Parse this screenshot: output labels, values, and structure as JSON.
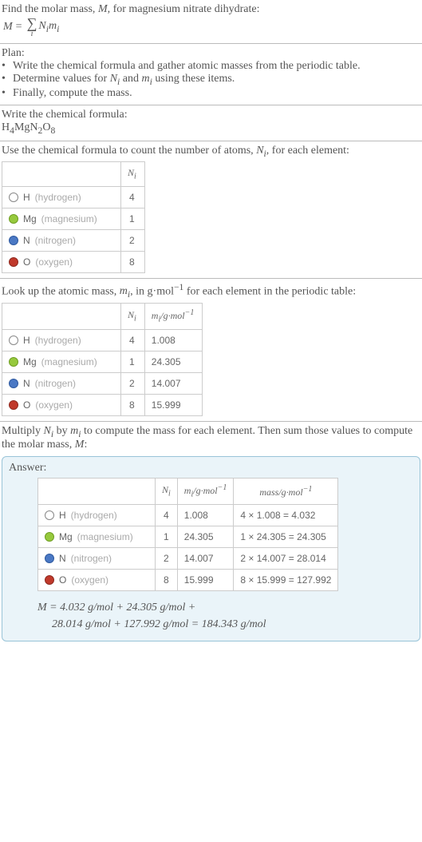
{
  "intro": {
    "line1_prefix": "Find the molar mass, ",
    "line1_var": "M",
    "line1_suffix": ", for magnesium nitrate dihydrate:",
    "eq_lhs": "M",
    "eq_eq": "=",
    "eq_sigma": "∑",
    "eq_sigma_sub": "i",
    "eq_rhs": "N_i m_i"
  },
  "plan": {
    "heading": "Plan:",
    "items": [
      "Write the chemical formula and gather atomic masses from the periodic table.",
      "Determine values for N_i and m_i using these items.",
      "Finally, compute the mass."
    ],
    "bullet": "•"
  },
  "formula_section": {
    "heading": "Write the chemical formula:",
    "formula_parts": [
      "H",
      "4",
      "Mg",
      "N",
      "2",
      "O",
      "8"
    ]
  },
  "count_section": {
    "heading_prefix": "Use the chemical formula to count the number of atoms, ",
    "heading_var": "N_i",
    "heading_suffix": ", for each element:",
    "col_ni": "N_i"
  },
  "mass_section": {
    "heading_prefix": "Look up the atomic mass, ",
    "heading_var": "m_i",
    "heading_mid": ", in g·mol",
    "heading_exp": "−1",
    "heading_suffix": " for each element in the periodic table:",
    "col_ni": "N_i",
    "col_mi_prefix": "m_i",
    "col_mi_unit": "/g·mol",
    "col_mi_exp": "−1"
  },
  "multiply_section": {
    "text_prefix": "Multiply ",
    "ni": "N_i",
    "by": " by ",
    "mi": "m_i",
    "text_suffix": " to compute the mass for each element. Then sum those values to compute the molar mass, ",
    "mvar": "M",
    "colon": ":"
  },
  "answer": {
    "label": "Answer:",
    "col_ni": "N_i",
    "col_mi_prefix": "m_i",
    "col_mi_unit": "/g·mol",
    "col_mi_exp": "−1",
    "col_mass_prefix": "mass/g·mol",
    "col_mass_exp": "−1",
    "result_line1": "M = 4.032 g/mol + 24.305 g/mol +",
    "result_line2": "28.014 g/mol + 127.992 g/mol = 184.343 g/mol"
  },
  "elements": [
    {
      "sym": "H",
      "name": "(hydrogen)",
      "dot_fill": "#ffffff",
      "dot_border": "#888888",
      "ni": "4",
      "mi": "1.008",
      "mass": "4 × 1.008 = 4.032"
    },
    {
      "sym": "Mg",
      "name": "(magnesium)",
      "dot_fill": "#96c93d",
      "dot_border": "#6f9e23",
      "ni": "1",
      "mi": "24.305",
      "mass": "1 × 24.305 = 24.305"
    },
    {
      "sym": "N",
      "name": "(nitrogen)",
      "dot_fill": "#4a78c4",
      "dot_border": "#2f5aa0",
      "ni": "2",
      "mi": "14.007",
      "mass": "2 × 14.007 = 28.014"
    },
    {
      "sym": "O",
      "name": "(oxygen)",
      "dot_fill": "#c0392b",
      "dot_border": "#8e2a20",
      "ni": "8",
      "mi": "15.999",
      "mass": "8 × 15.999 = 127.992"
    }
  ],
  "colors": {
    "text": "#555555",
    "muted": "#aaaaaa",
    "border": "#cccccc",
    "rule": "#bbbbbb",
    "answer_bg": "#eaf4f9",
    "answer_border": "#99c4d8"
  }
}
